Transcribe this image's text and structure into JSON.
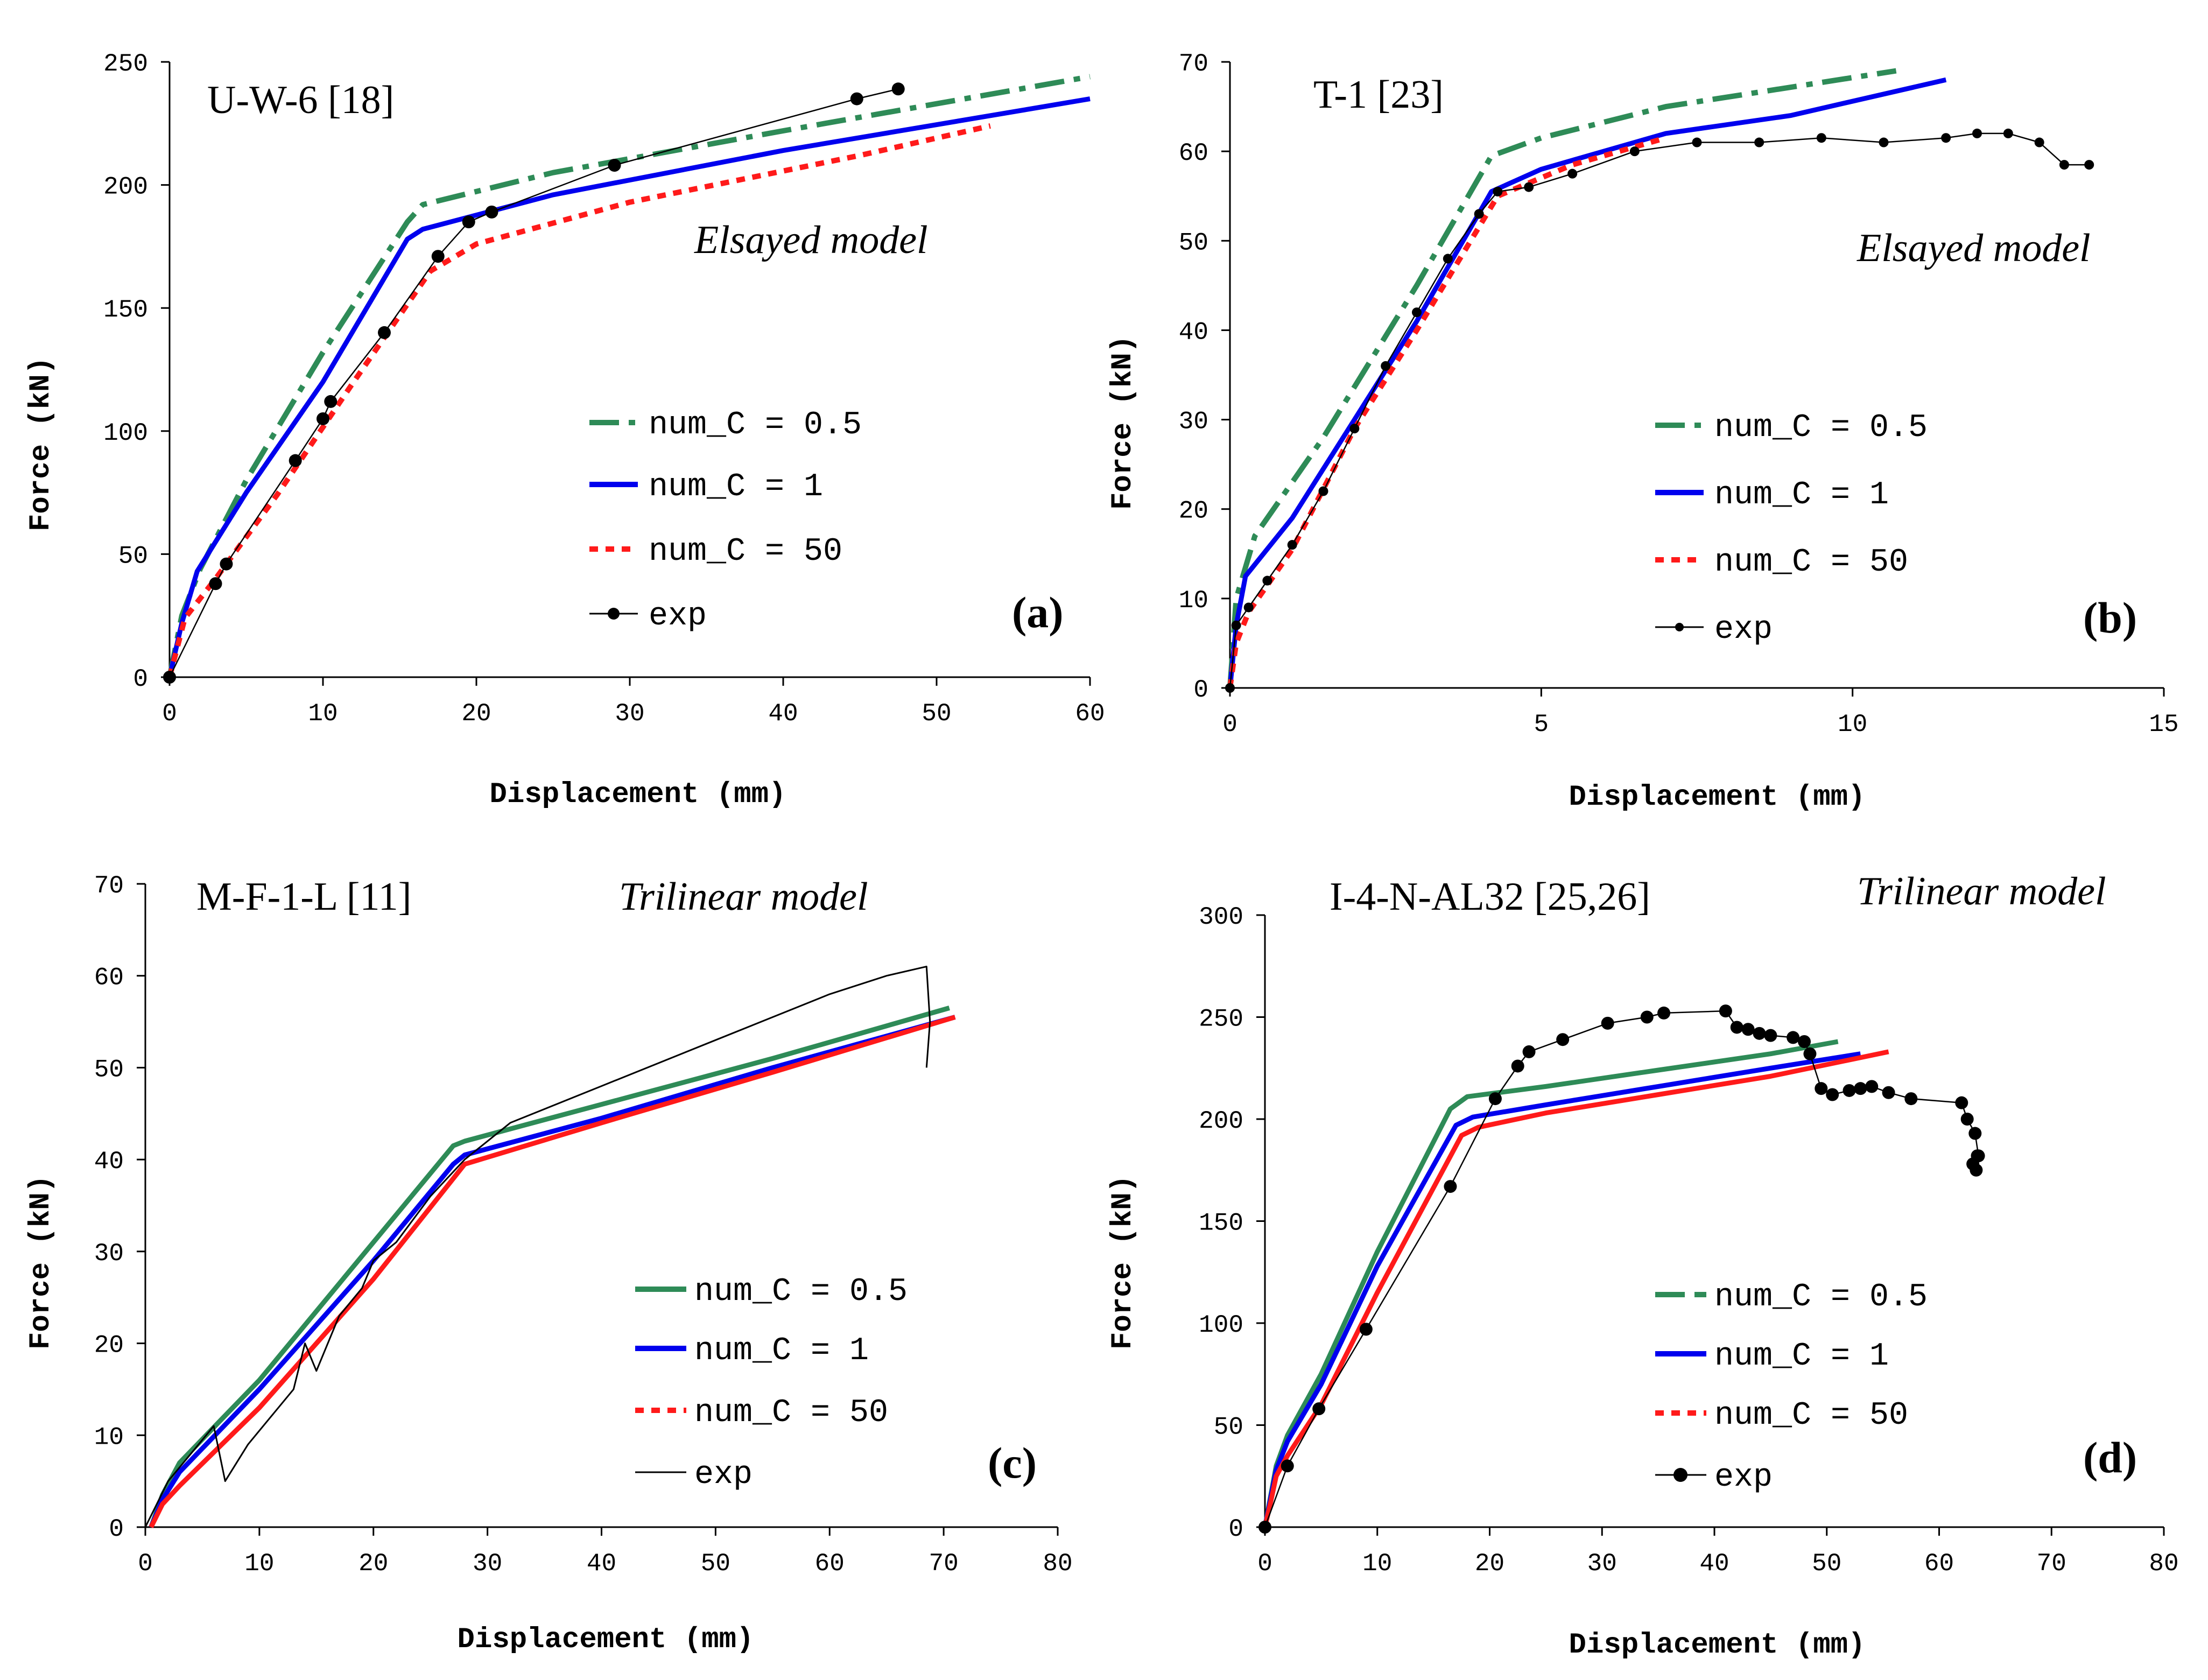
{
  "colors": {
    "green": "#2e8b57",
    "blue": "#0000ee",
    "red": "#ff1a1a",
    "black": "#000000"
  },
  "chart_data": [
    {
      "type": "line",
      "id": "a",
      "title": "U-W-6 [18]",
      "model": "Elsayed model",
      "panel_label": "(a)",
      "xlabel": "Displacement (mm)",
      "ylabel": "Force (kN)",
      "xlim": [
        0,
        60
      ],
      "ylim": [
        0,
        250
      ],
      "xticks": [
        "0",
        "10",
        "20",
        "30",
        "40",
        "50",
        "60"
      ],
      "yticks": [
        "0",
        "50",
        "100",
        "150",
        "200",
        "250"
      ],
      "legend_position": "center-right",
      "series": [
        {
          "name": "num_C = 0.5",
          "color": "#2e8b57",
          "style": "dashdot",
          "x": [
            0,
            0.8,
            2,
            5,
            10,
            15.5,
            16.5,
            25,
            40,
            60
          ],
          "y": [
            0,
            25,
            44,
            80,
            132,
            185,
            192,
            205,
            222,
            244
          ]
        },
        {
          "name": "num_C = 1",
          "color": "#0000ee",
          "style": "solid",
          "x": [
            0,
            0.8,
            1.8,
            5,
            10,
            15.5,
            16.5,
            25,
            40,
            60
          ],
          "y": [
            0,
            22,
            43,
            75,
            120,
            178,
            182,
            196,
            214,
            235
          ]
        },
        {
          "name": "num_C = 50",
          "color": "#ff1a1a",
          "style": "dotted",
          "x": [
            0,
            1,
            3,
            7,
            12,
            17,
            20,
            30,
            45,
            53.5
          ],
          "y": [
            0,
            24,
            40,
            74,
            120,
            165,
            176,
            193,
            212,
            224
          ]
        },
        {
          "name": "exp",
          "color": "#000000",
          "style": "marker",
          "x": [
            0,
            3,
            3.7,
            8.2,
            10,
            10.5,
            14,
            17.5,
            19.5,
            21,
            29,
            44.8,
            47.5
          ],
          "y": [
            0,
            38,
            46,
            88,
            105,
            112,
            140,
            171,
            185,
            189,
            208,
            235,
            239
          ]
        }
      ]
    },
    {
      "type": "line",
      "id": "b",
      "title": "T-1 [23]",
      "model": "Elsayed model",
      "panel_label": "(b)",
      "xlabel": "Displacement (mm)",
      "ylabel": "Force (kN)",
      "xlim": [
        0,
        15
      ],
      "ylim": [
        0,
        70
      ],
      "xticks": [
        "0",
        "5",
        "10",
        "15"
      ],
      "yticks": [
        "0",
        "10",
        "20",
        "30",
        "40",
        "50",
        "60",
        "70"
      ],
      "legend_position": "center-right",
      "series": [
        {
          "name": "num_C = 0.5",
          "color": "#2e8b57",
          "style": "dashdot",
          "x": [
            0,
            0.1,
            0.4,
            1.5,
            3,
            4.2,
            5,
            7,
            10.7
          ],
          "y": [
            0,
            10,
            17,
            28,
            45,
            59.5,
            61.5,
            65,
            69
          ]
        },
        {
          "name": "num_C = 1",
          "color": "#0000ee",
          "style": "solid",
          "x": [
            0,
            0.1,
            0.25,
            1,
            2,
            3,
            4.2,
            5,
            7,
            9,
            11.5
          ],
          "y": [
            0,
            7,
            12.5,
            19,
            30,
            41,
            55.5,
            58,
            62,
            64,
            68
          ]
        },
        {
          "name": "num_C = 50",
          "color": "#ff1a1a",
          "style": "dotted",
          "x": [
            0,
            0.1,
            0.3,
            1,
            2,
            3,
            4.3,
            5.5,
            7
          ],
          "y": [
            0,
            5,
            8.5,
            15.5,
            29,
            40,
            55,
            58.5,
            61.5
          ]
        },
        {
          "name": "exp",
          "color": "#000000",
          "style": "marker-small",
          "x": [
            0,
            0.1,
            0.3,
            0.6,
            1,
            1.5,
            2,
            2.5,
            3,
            3.5,
            4,
            4.3,
            4.8,
            5.5,
            6.5,
            7.5,
            8.5,
            9.5,
            10.5,
            11.5,
            12,
            12.5,
            13,
            13.4,
            13.8
          ],
          "y": [
            0,
            7,
            9,
            12,
            16,
            22,
            29,
            36,
            42,
            48,
            53,
            55.5,
            56,
            57.5,
            60,
            61,
            61,
            61.5,
            61,
            61.5,
            62,
            62,
            61,
            58.5,
            58.5
          ]
        }
      ]
    },
    {
      "type": "line",
      "id": "c",
      "title": "M-F-1-L [11]",
      "model": "Trilinear model",
      "panel_label": "(c)",
      "xlabel": "Displacement (mm)",
      "ylabel": "Force (kN)",
      "xlim": [
        0,
        80
      ],
      "ylim": [
        0,
        70
      ],
      "xticks": [
        "0",
        "10",
        "20",
        "30",
        "40",
        "50",
        "60",
        "70",
        "80"
      ],
      "yticks": [
        "0",
        "10",
        "20",
        "30",
        "40",
        "50",
        "60",
        "70"
      ],
      "legend_position": "lower-right",
      "series": [
        {
          "name": "num_C = 0.5",
          "color": "#2e8b57",
          "style": "solid",
          "x": [
            0.5,
            1.5,
            3,
            10,
            20,
            27,
            28,
            40,
            55,
            70.5
          ],
          "y": [
            0,
            3.5,
            7,
            16,
            31,
            41.5,
            42,
            46,
            51,
            56.5
          ]
        },
        {
          "name": "num_C = 1",
          "color": "#0000ee",
          "style": "solid",
          "x": [
            0.5,
            1.5,
            3,
            10,
            20,
            27,
            28,
            40,
            55,
            71
          ],
          "y": [
            0,
            3,
            6,
            15,
            29,
            39.5,
            40.5,
            44.5,
            50,
            55.5
          ]
        },
        {
          "name": "num_C = 50",
          "color": "#ff1a1a",
          "style": "dotted-solid",
          "x": [
            0.5,
            1.5,
            3,
            10,
            20,
            28,
            40,
            55,
            71
          ],
          "y": [
            0,
            2.5,
            4.5,
            13,
            27,
            39.5,
            44,
            49.5,
            55.5
          ]
        },
        {
          "name": "exp",
          "color": "#000000",
          "style": "thin",
          "x": [
            0,
            1,
            2,
            4,
            6,
            7,
            9,
            11,
            13,
            14,
            15,
            17,
            19,
            20,
            22,
            25,
            28,
            32,
            40,
            50,
            60,
            65,
            68.5,
            68.8,
            68.5
          ],
          "y": [
            0,
            2.5,
            5,
            8,
            11,
            5,
            9,
            12,
            15,
            20,
            17,
            23,
            26,
            29,
            31,
            36,
            40,
            44,
            48,
            53,
            58,
            60,
            61,
            55,
            50
          ]
        }
      ]
    },
    {
      "type": "line",
      "id": "d",
      "title": "I-4-N-AL32 [25,26]",
      "model": "Trilinear model",
      "panel_label": "(d)",
      "xlabel": "Displacement (mm)",
      "ylabel": "Force (kN)",
      "xlim": [
        0,
        80
      ],
      "ylim": [
        0,
        300
      ],
      "xticks": [
        "0",
        "10",
        "20",
        "30",
        "40",
        "50",
        "60",
        "70",
        "80"
      ],
      "yticks": [
        "0",
        "50",
        "100",
        "150",
        "200",
        "250",
        "300"
      ],
      "legend_position": "lower-right",
      "series": [
        {
          "name": "num_C = 0.5",
          "color": "#2e8b57",
          "style": "solid",
          "x": [
            0,
            0.5,
            1,
            2,
            5,
            10,
            16.5,
            18,
            25,
            35,
            45,
            51
          ],
          "y": [
            0,
            15,
            30,
            45,
            75,
            135,
            205,
            211,
            216,
            224,
            232,
            238
          ]
        },
        {
          "name": "num_C = 1",
          "color": "#0000ee",
          "style": "solid",
          "x": [
            0,
            0.5,
            1,
            2,
            5,
            10,
            17,
            18.5,
            25,
            35,
            45,
            53
          ],
          "y": [
            0,
            14,
            28,
            42,
            70,
            128,
            197,
            201,
            207,
            216,
            225,
            232
          ]
        },
        {
          "name": "num_C = 50",
          "color": "#ff1a1a",
          "style": "dotted-solid",
          "x": [
            0,
            0.5,
            1,
            2,
            5,
            10,
            17.5,
            19,
            25,
            35,
            45,
            55.5
          ],
          "y": [
            0,
            12,
            25,
            35,
            60,
            115,
            192,
            196,
            203,
            212,
            221,
            233
          ]
        },
        {
          "name": "exp",
          "color": "#000000",
          "style": "marker",
          "x": [
            0,
            2,
            4.8,
            9,
            16.5,
            20.5,
            22.5,
            23.5,
            26.5,
            30.5,
            34,
            35.5,
            41,
            42,
            43,
            44,
            45,
            47,
            48,
            48.5,
            49.5,
            50.5,
            52,
            53,
            54,
            55.5,
            57.5,
            62,
            62.5,
            63.2,
            63.5,
            63.3,
            63,
            63.4
          ],
          "y": [
            0,
            30,
            58,
            97,
            167,
            210,
            226,
            233,
            239,
            247,
            250,
            252,
            253,
            245,
            244,
            242,
            241,
            240,
            238,
            232,
            215,
            212,
            214,
            215,
            216,
            213,
            210,
            208,
            200,
            193,
            182,
            175,
            178,
            182
          ]
        }
      ]
    }
  ]
}
